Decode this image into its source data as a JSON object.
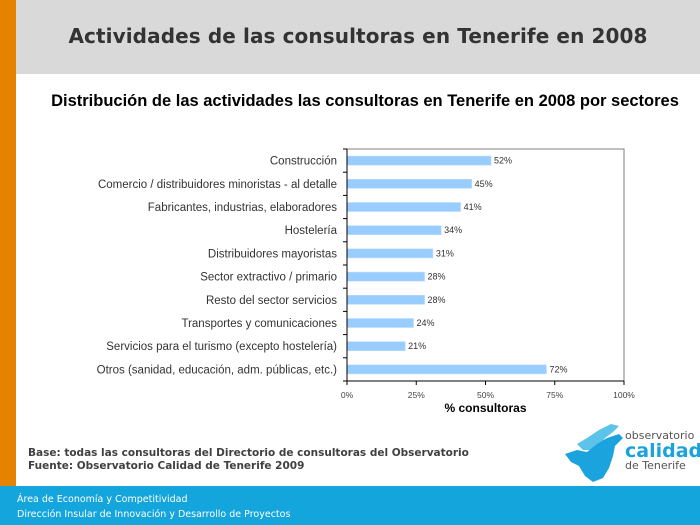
{
  "slide": {
    "header_title": "Actividades de las consultoras en Tenerife en 2008",
    "notes": {
      "base": "Base: todas las consultoras del Directorio de consultoras del Observatorio",
      "fuente": "Fuente: Observatorio Calidad de Tenerife 2009"
    },
    "logo": {
      "line1": "observatorio",
      "line2": "calidad",
      "line3": "de Tenerife"
    },
    "footer": {
      "line1": "Área de Economía y Competitividad",
      "line2": "Dirección Insular de Innovación y Desarrollo de Proyectos"
    },
    "colors": {
      "accent_orange": "#e58200",
      "header_grey": "#d9d9d9",
      "bar_fill": "#99ccff",
      "footer_blue": "#14a5dc"
    }
  },
  "chart_data": {
    "type": "bar",
    "orientation": "horizontal",
    "title": "Distribución de las actividades las consultoras en Tenerife en 2008 por sectores",
    "xlabel": "% consultoras",
    "ylabel": "",
    "xlim": [
      0,
      100
    ],
    "x_ticks": [
      "0%",
      "25%",
      "50%",
      "75%",
      "100%"
    ],
    "x_tick_values": [
      0,
      25,
      50,
      75,
      100
    ],
    "categories": [
      "Construcción",
      "Comercio / distribuidores minoristas - al detalle",
      "Fabricantes, industrias, elaboradores",
      "Hostelería",
      "Distribuidores mayoristas",
      "Sector extractivo / primario",
      "Resto del sector servicios",
      "Transportes y comunicaciones",
      "Servicios para el turismo (excepto hostelería)",
      "Otros (sanidad, educación, adm. públicas, etc.)"
    ],
    "values": [
      52,
      45,
      41,
      34,
      31,
      28,
      28,
      24,
      21,
      72
    ],
    "value_labels": [
      "52%",
      "45%",
      "41%",
      "34%",
      "31%",
      "28%",
      "28%",
      "24%",
      "21%",
      "72%"
    ],
    "grid": false,
    "legend": "none"
  }
}
